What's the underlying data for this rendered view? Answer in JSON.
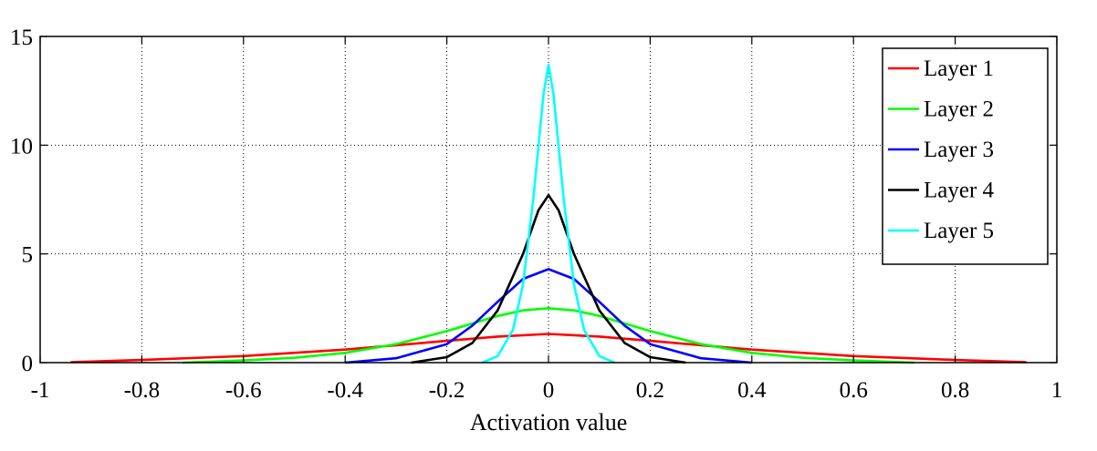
{
  "chart_data": {
    "type": "line",
    "xlabel": "Activation value",
    "ylabel": "",
    "xlim": [
      -1,
      1
    ],
    "ylim": [
      0,
      15
    ],
    "xticks": [
      -1,
      -0.8,
      -0.6,
      -0.4,
      -0.2,
      0,
      0.2,
      0.4,
      0.6,
      0.8,
      1
    ],
    "yticks": [
      0,
      5,
      10,
      15
    ],
    "xtick_labels": [
      "-1",
      "-0.8",
      "-0.6",
      "-0.4",
      "-0.2",
      "0",
      "0.2",
      "0.4",
      "0.6",
      "0.8",
      "1"
    ],
    "ytick_labels": [
      "0",
      "5",
      "10",
      "15"
    ],
    "grid": true,
    "legend_position": "top-right",
    "series": [
      {
        "name": "Layer 1",
        "color": "#ff0000",
        "x": [
          -0.94,
          -0.8,
          -0.6,
          -0.4,
          -0.3,
          -0.2,
          -0.1,
          0,
          0.1,
          0.2,
          0.3,
          0.4,
          0.6,
          0.8,
          0.94
        ],
        "y": [
          0.02,
          0.12,
          0.3,
          0.6,
          0.8,
          1.0,
          1.2,
          1.32,
          1.2,
          1.0,
          0.8,
          0.6,
          0.3,
          0.12,
          0.02
        ]
      },
      {
        "name": "Layer 2",
        "color": "#00ff00",
        "x": [
          -0.72,
          -0.6,
          -0.5,
          -0.4,
          -0.3,
          -0.2,
          -0.1,
          -0.05,
          0,
          0.05,
          0.1,
          0.2,
          0.3,
          0.4,
          0.5,
          0.6,
          0.72
        ],
        "y": [
          0.0,
          0.1,
          0.22,
          0.45,
          0.85,
          1.45,
          2.15,
          2.4,
          2.5,
          2.4,
          2.15,
          1.45,
          0.85,
          0.45,
          0.22,
          0.1,
          0.0
        ]
      },
      {
        "name": "Layer 3",
        "color": "#0000ff",
        "x": [
          -0.4,
          -0.3,
          -0.2,
          -0.15,
          -0.1,
          -0.05,
          0,
          0.05,
          0.1,
          0.15,
          0.2,
          0.3,
          0.4
        ],
        "y": [
          0.0,
          0.2,
          0.85,
          1.7,
          2.8,
          3.85,
          4.3,
          3.85,
          2.8,
          1.7,
          0.85,
          0.2,
          0.0
        ]
      },
      {
        "name": "Layer 4",
        "color": "#000000",
        "x": [
          -0.27,
          -0.2,
          -0.15,
          -0.1,
          -0.05,
          -0.02,
          0,
          0.02,
          0.05,
          0.1,
          0.15,
          0.2,
          0.27
        ],
        "y": [
          0.0,
          0.25,
          0.9,
          2.4,
          5.0,
          7.0,
          7.7,
          7.0,
          5.0,
          2.4,
          0.9,
          0.25,
          0.0
        ]
      },
      {
        "name": "Layer 5",
        "color": "#00ffff",
        "x": [
          -0.13,
          -0.1,
          -0.07,
          -0.05,
          -0.03,
          -0.01,
          0,
          0.01,
          0.03,
          0.05,
          0.07,
          0.1,
          0.13
        ],
        "y": [
          0.0,
          0.3,
          1.5,
          3.6,
          7.5,
          12.3,
          13.7,
          12.3,
          7.5,
          3.6,
          1.5,
          0.3,
          0.0
        ]
      }
    ]
  }
}
